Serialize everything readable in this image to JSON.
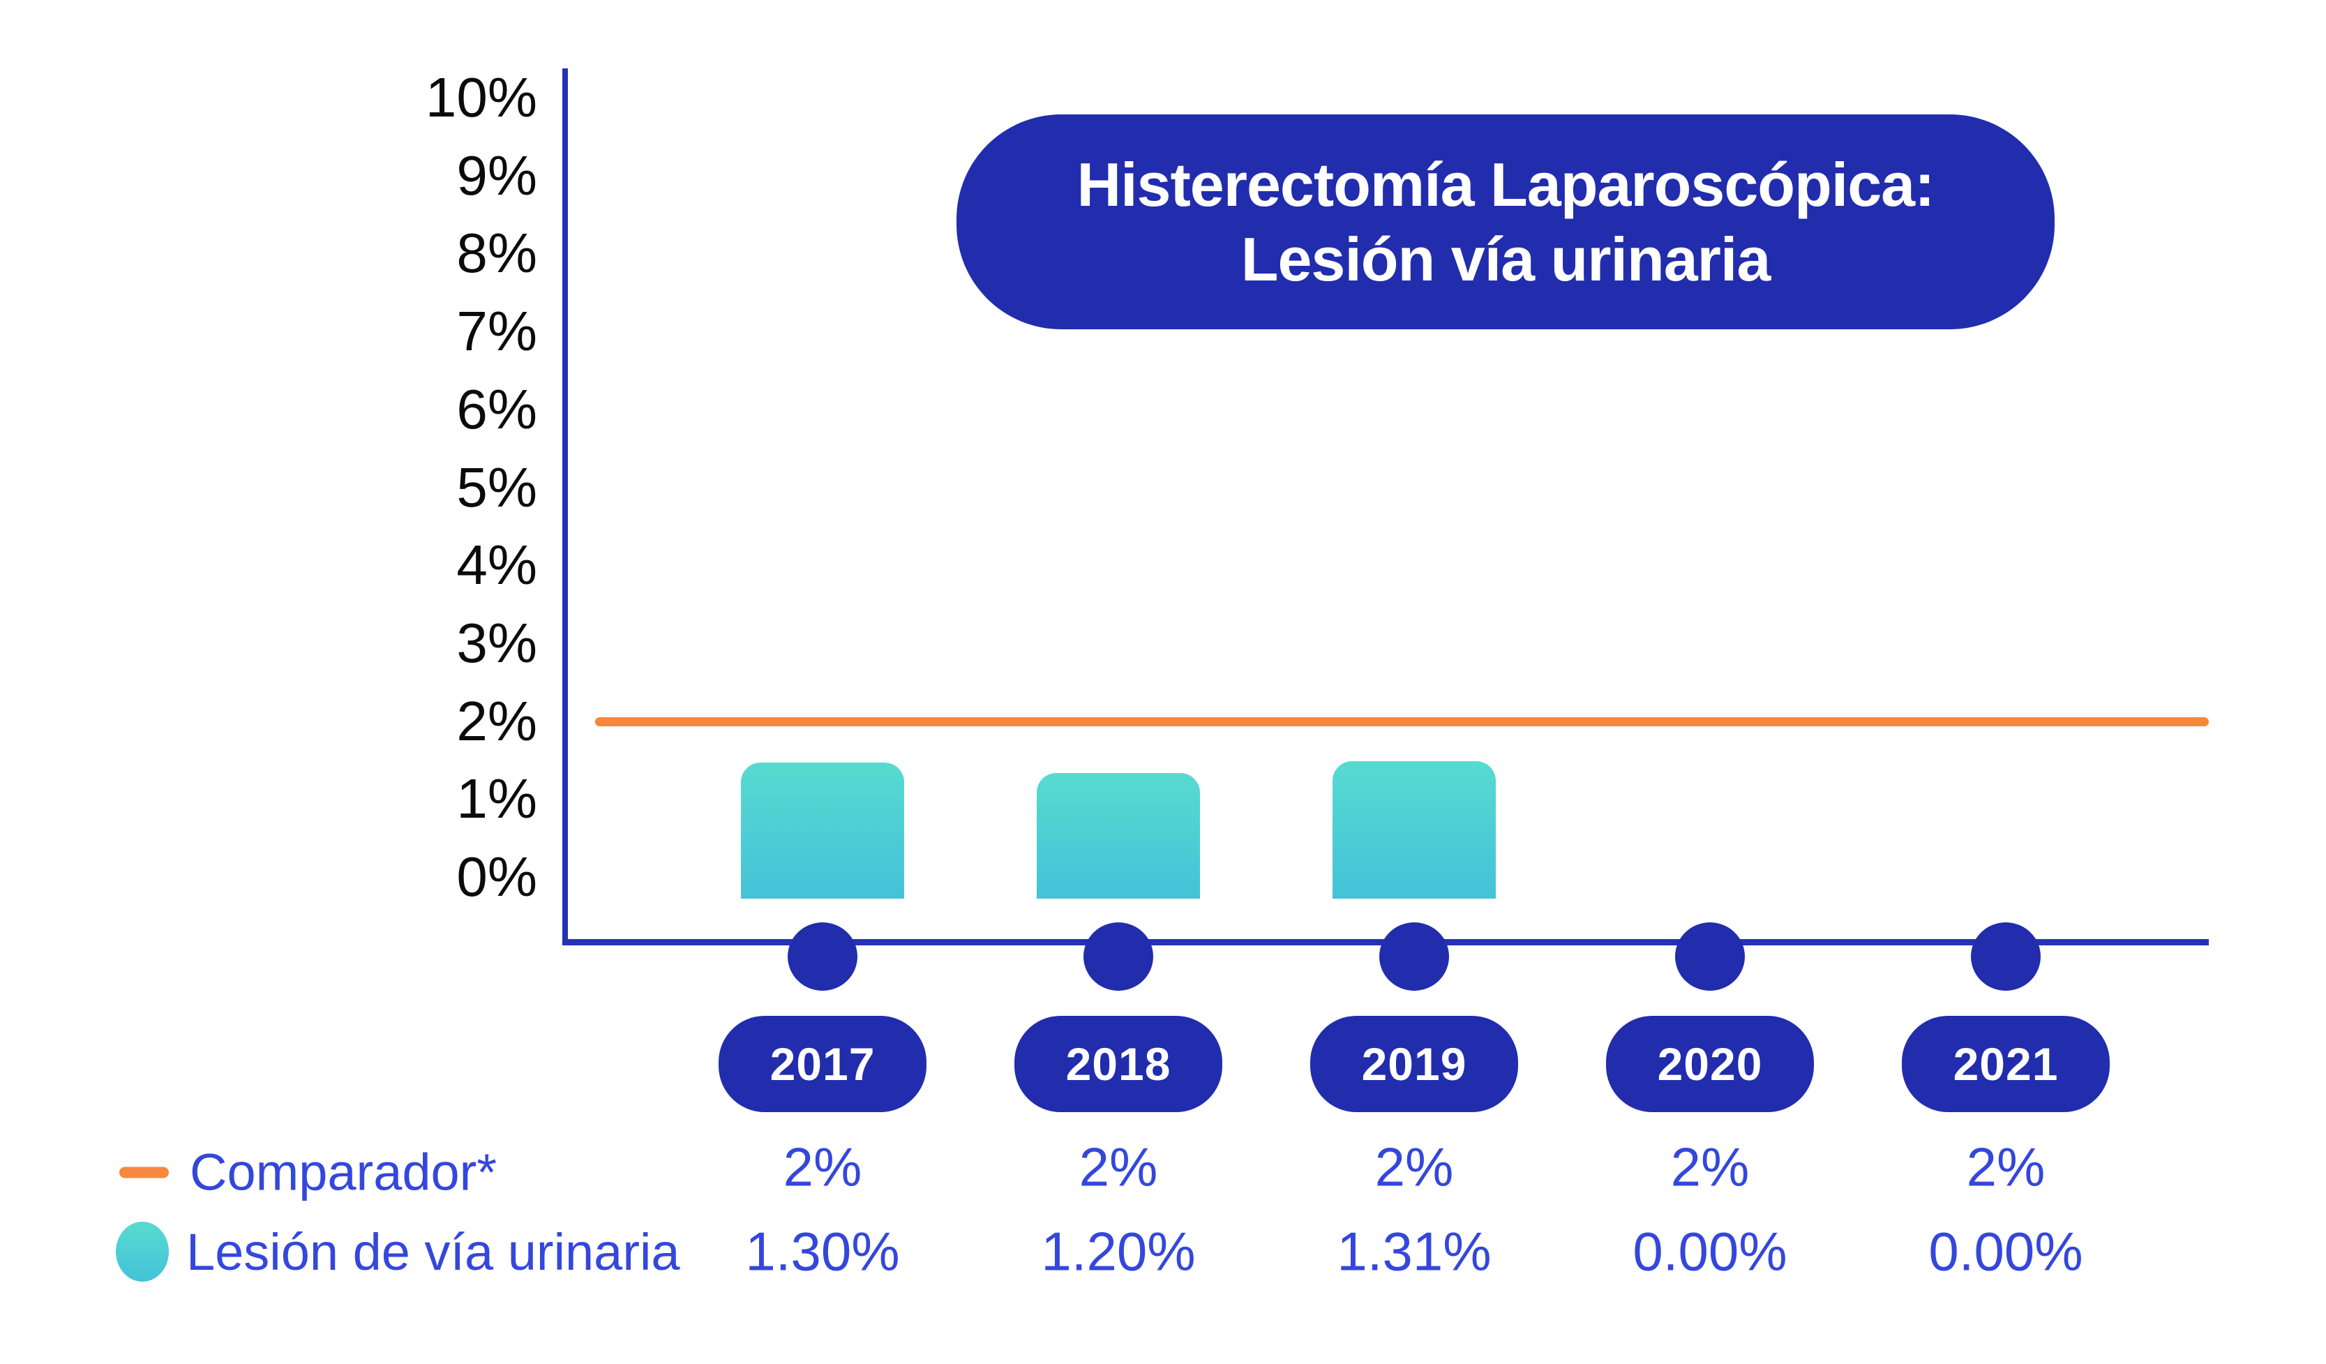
{
  "title": {
    "line1": "Histerectomía Laparoscópica:",
    "line2": "Lesión vía urinaria"
  },
  "y_axis": {
    "tick_labels": [
      "10%",
      "9%",
      "8%",
      "7%",
      "6%",
      "5%",
      "4%",
      "3%",
      "2%",
      "1%",
      "0%"
    ]
  },
  "legend": {
    "items": [
      {
        "label": "Comparador*",
        "marker": "orange-dash-icon"
      },
      {
        "label": "Lesión de vía urinaria",
        "marker": "teal-circle-icon"
      }
    ]
  },
  "colors": {
    "brand_blue": "#212DAD",
    "axis_blue": "#2432B8",
    "text_blue": "#3447DC",
    "orange": "#F8873D",
    "teal_top": "#57DBD0",
    "teal_bottom": "#44C2D8",
    "tick_black": "#0B0B0B",
    "title_text": "#FFFFFF"
  },
  "chart_data": {
    "type": "bar",
    "title": "Histerectomía Laparoscópica: Lesión vía urinaria",
    "categories": [
      "2017",
      "2018",
      "2019",
      "2020",
      "2021"
    ],
    "series": [
      {
        "name": "Comparador*",
        "style": "line",
        "color": "#F8873D",
        "values": [
          2,
          2,
          2,
          2,
          2
        ],
        "labels": [
          "2%",
          "2%",
          "2%",
          "2%",
          "2%"
        ]
      },
      {
        "name": "Lesión de vía urinaria",
        "style": "bar",
        "color": "#4FCFD4",
        "values": [
          1.3,
          1.2,
          1.31,
          0.0,
          0.0
        ],
        "labels": [
          "1.30%",
          "1.20%",
          "1.31%",
          "0.00%",
          "0.00%"
        ]
      }
    ],
    "xlabel": "",
    "ylabel": "",
    "ylim": [
      0,
      10
    ],
    "y_tick_unit": "%",
    "grid": false,
    "legend_position": "bottom-left"
  }
}
